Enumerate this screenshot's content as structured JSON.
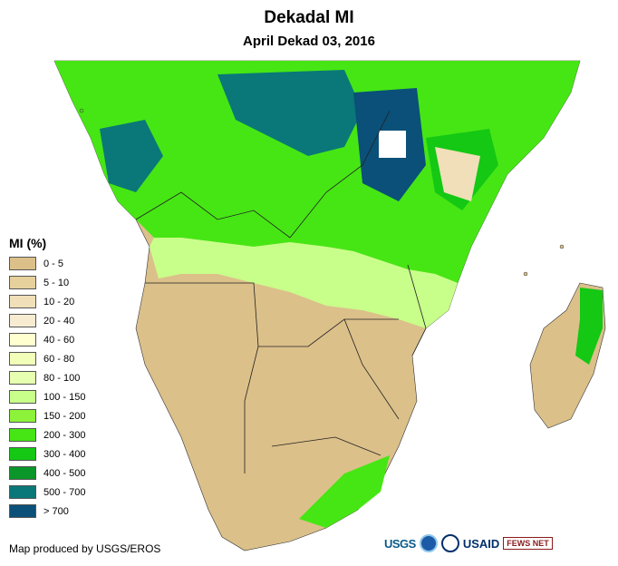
{
  "header": {
    "title": "Dekadal MI",
    "subtitle": "April Dekad 03, 2016"
  },
  "legend": {
    "title": "MI (%)",
    "items": [
      {
        "label": "0 - 5",
        "color": "#dcc08a"
      },
      {
        "label": "5 - 10",
        "color": "#e6d09c"
      },
      {
        "label": "10 - 20",
        "color": "#f0dfb8"
      },
      {
        "label": "20 - 40",
        "color": "#f7ecd2"
      },
      {
        "label": "40 - 60",
        "color": "#ffffd0"
      },
      {
        "label": "60 - 80",
        "color": "#f2ffb8"
      },
      {
        "label": "80 - 100",
        "color": "#e6ffb0"
      },
      {
        "label": "100 - 150",
        "color": "#c8ff8a"
      },
      {
        "label": "150 - 200",
        "color": "#8cf23a"
      },
      {
        "label": "200 - 300",
        "color": "#46e614"
      },
      {
        "label": "300 - 400",
        "color": "#14c814"
      },
      {
        "label": "400 - 500",
        "color": "#0a9628"
      },
      {
        "label": "500 - 700",
        "color": "#0a7878"
      },
      {
        "label": "> 700",
        "color": "#0a5078"
      }
    ]
  },
  "footer": {
    "credit": "Map produced by USGS/EROS",
    "logos": {
      "usgs": "USGS",
      "usaid": "USAID",
      "fews": "FEWS NET"
    }
  },
  "colors": {
    "arid": "#dcc08a",
    "wet": "#14c814",
    "very_wet": "#0a7878"
  }
}
